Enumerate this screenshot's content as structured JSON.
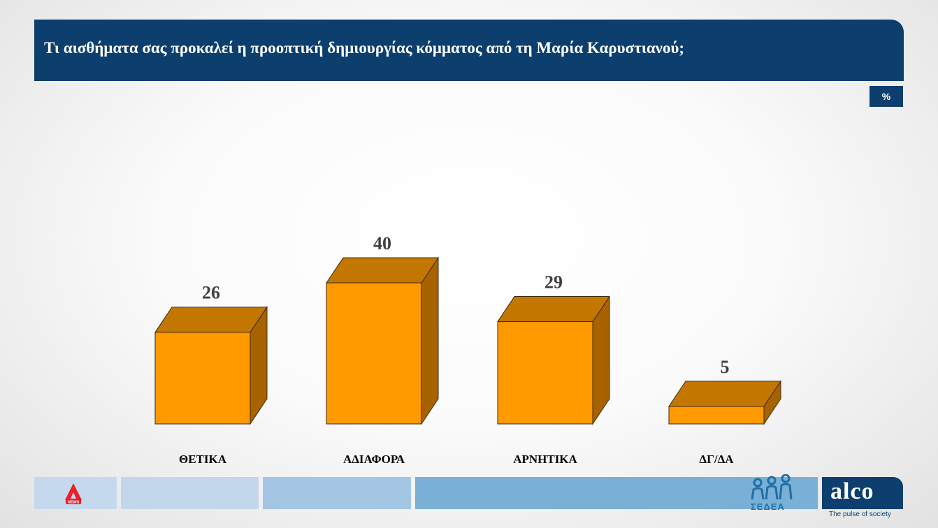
{
  "header": {
    "title": "Τι αισθήματα σας προκαλεί η προοπτική δημιουργίας κόμματος από τη Μαρία Καρυστιανού;",
    "unit_label": "%"
  },
  "chart_data": {
    "type": "bar",
    "categories": [
      "ΘΕΤΙΚΑ",
      "ΑΔΙΑΦΟΡΑ",
      "ΑΡΝΗΤΙΚΑ",
      "ΔΓ/ΔΑ"
    ],
    "values": [
      26,
      40,
      29,
      5
    ],
    "title": "Τι αισθήματα σας προκαλεί η προοπτική δημιουργίας κόμματος από τη Μαρία Καρυστιανού;",
    "ylabel": "%",
    "ylim": [
      0,
      40
    ],
    "grid": false,
    "style": "3d-column",
    "colors": {
      "front": "#ff9900",
      "top": "#c47700",
      "side": "#a86200",
      "outline": "#3a2a10"
    }
  },
  "footer": {
    "segment_colors": [
      "#c4d9ee",
      "#c2d7ec",
      "#a3c6e4",
      "#7aafd6"
    ],
    "logos": {
      "left": "alpha-news-logo",
      "sedea": "ΣΕΔΕΑ",
      "brand": "alco",
      "tagline": "The pulse of society"
    }
  }
}
